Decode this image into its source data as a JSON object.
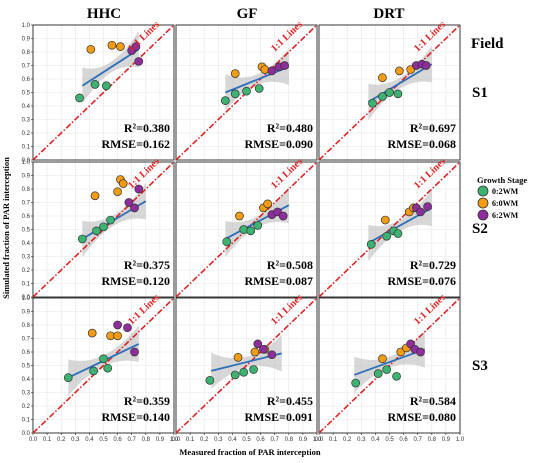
{
  "columns": [
    "HHC",
    "GF",
    "DRT"
  ],
  "rows": [
    "S1",
    "S2",
    "S3"
  ],
  "field_label": "Field",
  "xlabel": "Measured fraction of PAR interception",
  "ylabel": "Simulated fraction of PAR interception",
  "identity_label": "1:1 Lines",
  "tick_labels": [
    "0.0",
    "0.1",
    "0.2",
    "0.3",
    "0.4",
    "0.5",
    "0.6",
    "0.7",
    "0.8",
    "0.9",
    "1.0"
  ],
  "legend": {
    "title": "Growth Stage",
    "items": [
      {
        "label": "0:2WM",
        "color": "#3cb371"
      },
      {
        "label": "6:0WM",
        "color": "#f39c12"
      },
      {
        "label": "6:2WM",
        "color": "#8e2d9c"
      }
    ]
  },
  "colors": {
    "identity": "#dd2222",
    "fit": "#2c6fbb",
    "band": "#bdbdbd",
    "grid": "#e6e6e6"
  },
  "chart_data": [
    {
      "type": "scatter",
      "title": "HHC",
      "row": "S1",
      "r2": "R²=0.380",
      "rmse": "RMSE=0.162",
      "fit": [
        [
          0.35,
          0.55
        ],
        [
          0.75,
          0.82
        ]
      ],
      "xlim": [
        0,
        1
      ],
      "ylim": [
        0,
        1
      ],
      "series": [
        {
          "name": "0:2WM",
          "points": [
            [
              0.33,
              0.46
            ],
            [
              0.44,
              0.56
            ],
            [
              0.52,
              0.55
            ]
          ]
        },
        {
          "name": "6:0WM",
          "points": [
            [
              0.41,
              0.82
            ],
            [
              0.56,
              0.85
            ],
            [
              0.62,
              0.84
            ]
          ]
        },
        {
          "name": "6:2WM",
          "points": [
            [
              0.7,
              0.81
            ],
            [
              0.73,
              0.84
            ],
            [
              0.75,
              0.73
            ]
          ]
        }
      ]
    },
    {
      "type": "scatter",
      "title": "GF",
      "row": "S1",
      "r2": "R²=0.480",
      "rmse": "RMSE=0.090",
      "fit": [
        [
          0.35,
          0.5
        ],
        [
          0.8,
          0.69
        ]
      ],
      "xlim": [
        0,
        1
      ],
      "ylim": [
        0,
        1
      ],
      "series": [
        {
          "name": "0:2WM",
          "points": [
            [
              0.35,
              0.44
            ],
            [
              0.42,
              0.49
            ],
            [
              0.5,
              0.51
            ],
            [
              0.59,
              0.53
            ]
          ]
        },
        {
          "name": "6:0WM",
          "points": [
            [
              0.42,
              0.64
            ],
            [
              0.61,
              0.69
            ],
            [
              0.63,
              0.67
            ]
          ]
        },
        {
          "name": "6:2WM",
          "points": [
            [
              0.68,
              0.66
            ],
            [
              0.73,
              0.69
            ],
            [
              0.77,
              0.7
            ]
          ]
        }
      ]
    },
    {
      "type": "scatter",
      "title": "DRT",
      "row": "S1",
      "r2": "R²=0.697",
      "rmse": "RMSE=0.068",
      "fit": [
        [
          0.35,
          0.43
        ],
        [
          0.8,
          0.71
        ]
      ],
      "xlim": [
        0,
        1
      ],
      "ylim": [
        0,
        1
      ],
      "series": [
        {
          "name": "0:2WM",
          "points": [
            [
              0.38,
              0.42
            ],
            [
              0.45,
              0.47
            ],
            [
              0.5,
              0.5
            ],
            [
              0.56,
              0.49
            ]
          ]
        },
        {
          "name": "6:0WM",
          "points": [
            [
              0.45,
              0.61
            ],
            [
              0.57,
              0.66
            ],
            [
              0.65,
              0.67
            ]
          ]
        },
        {
          "name": "6:2WM",
          "points": [
            [
              0.69,
              0.7
            ],
            [
              0.73,
              0.71
            ],
            [
              0.76,
              0.7
            ]
          ]
        }
      ]
    },
    {
      "type": "scatter",
      "title": "HHC",
      "row": "S2",
      "r2": "R²=0.375",
      "rmse": "RMSE=0.120",
      "fit": [
        [
          0.35,
          0.43
        ],
        [
          0.8,
          0.71
        ]
      ],
      "xlim": [
        0,
        1
      ],
      "ylim": [
        0,
        1
      ],
      "series": [
        {
          "name": "0:2WM",
          "points": [
            [
              0.35,
              0.43
            ],
            [
              0.45,
              0.49
            ],
            [
              0.5,
              0.52
            ],
            [
              0.55,
              0.57
            ]
          ]
        },
        {
          "name": "6:0WM",
          "points": [
            [
              0.44,
              0.75
            ],
            [
              0.6,
              0.78
            ],
            [
              0.62,
              0.87
            ],
            [
              0.64,
              0.84
            ]
          ]
        },
        {
          "name": "6:2WM",
          "points": [
            [
              0.68,
              0.7
            ],
            [
              0.72,
              0.66
            ],
            [
              0.75,
              0.8
            ]
          ]
        }
      ]
    },
    {
      "type": "scatter",
      "title": "GF",
      "row": "S2",
      "r2": "R²=0.508",
      "rmse": "RMSE=0.087",
      "fit": [
        [
          0.35,
          0.43
        ],
        [
          0.8,
          0.68
        ]
      ],
      "xlim": [
        0,
        1
      ],
      "ylim": [
        0,
        1
      ],
      "series": [
        {
          "name": "0:2WM",
          "points": [
            [
              0.36,
              0.41
            ],
            [
              0.48,
              0.5
            ],
            [
              0.53,
              0.49
            ],
            [
              0.58,
              0.53
            ]
          ]
        },
        {
          "name": "6:0WM",
          "points": [
            [
              0.45,
              0.6
            ],
            [
              0.62,
              0.66
            ],
            [
              0.65,
              0.69
            ]
          ]
        },
        {
          "name": "6:2WM",
          "points": [
            [
              0.68,
              0.61
            ],
            [
              0.72,
              0.63
            ],
            [
              0.76,
              0.6
            ]
          ]
        }
      ]
    },
    {
      "type": "scatter",
      "title": "DRT",
      "row": "S2",
      "r2": "R²=0.729",
      "rmse": "RMSE=0.076",
      "fit": [
        [
          0.35,
          0.4
        ],
        [
          0.8,
          0.66
        ]
      ],
      "xlim": [
        0,
        1
      ],
      "ylim": [
        0,
        1
      ],
      "series": [
        {
          "name": "0:2WM",
          "points": [
            [
              0.37,
              0.39
            ],
            [
              0.48,
              0.45
            ],
            [
              0.53,
              0.49
            ],
            [
              0.56,
              0.47
            ]
          ]
        },
        {
          "name": "6:0WM",
          "points": [
            [
              0.47,
              0.57
            ],
            [
              0.64,
              0.63
            ],
            [
              0.67,
              0.66
            ]
          ]
        },
        {
          "name": "6:2WM",
          "points": [
            [
              0.69,
              0.66
            ],
            [
              0.72,
              0.63
            ],
            [
              0.77,
              0.67
            ]
          ]
        }
      ]
    },
    {
      "type": "scatter",
      "title": "HHC",
      "row": "S3",
      "r2": "R²=0.359",
      "rmse": "RMSE=0.140",
      "fit": [
        [
          0.25,
          0.41
        ],
        [
          0.75,
          0.66
        ]
      ],
      "xlim": [
        0,
        1
      ],
      "ylim": [
        0,
        1
      ],
      "series": [
        {
          "name": "0:2WM",
          "points": [
            [
              0.25,
              0.41
            ],
            [
              0.43,
              0.46
            ],
            [
              0.5,
              0.55
            ],
            [
              0.53,
              0.48
            ]
          ]
        },
        {
          "name": "6:0WM",
          "points": [
            [
              0.42,
              0.74
            ],
            [
              0.55,
              0.72
            ],
            [
              0.6,
              0.72
            ]
          ]
        },
        {
          "name": "6:2WM",
          "points": [
            [
              0.6,
              0.8
            ],
            [
              0.67,
              0.78
            ],
            [
              0.72,
              0.6
            ]
          ]
        }
      ]
    },
    {
      "type": "scatter",
      "title": "GF",
      "row": "S3",
      "r2": "R²=0.455",
      "rmse": "RMSE=0.091",
      "fit": [
        [
          0.25,
          0.46
        ],
        [
          0.75,
          0.59
        ]
      ],
      "xlim": [
        0,
        1
      ],
      "ylim": [
        0,
        1
      ],
      "series": [
        {
          "name": "0:2WM",
          "points": [
            [
              0.24,
              0.39
            ],
            [
              0.42,
              0.43
            ],
            [
              0.48,
              0.45
            ],
            [
              0.55,
              0.47
            ]
          ]
        },
        {
          "name": "6:0WM",
          "points": [
            [
              0.44,
              0.56
            ],
            [
              0.56,
              0.6
            ],
            [
              0.63,
              0.62
            ]
          ]
        },
        {
          "name": "6:2WM",
          "points": [
            [
              0.58,
              0.66
            ],
            [
              0.62,
              0.62
            ],
            [
              0.68,
              0.58
            ]
          ]
        }
      ]
    },
    {
      "type": "scatter",
      "title": "DRT",
      "row": "S3",
      "r2": "R²=0.584",
      "rmse": "RMSE=0.080",
      "fit": [
        [
          0.25,
          0.43
        ],
        [
          0.75,
          0.62
        ]
      ],
      "xlim": [
        0,
        1
      ],
      "ylim": [
        0,
        1
      ],
      "series": [
        {
          "name": "0:2WM",
          "points": [
            [
              0.26,
              0.37
            ],
            [
              0.42,
              0.44
            ],
            [
              0.48,
              0.47
            ],
            [
              0.55,
              0.42
            ]
          ]
        },
        {
          "name": "6:0WM",
          "points": [
            [
              0.45,
              0.55
            ],
            [
              0.58,
              0.6
            ],
            [
              0.62,
              0.63
            ]
          ]
        },
        {
          "name": "6:2WM",
          "points": [
            [
              0.65,
              0.66
            ],
            [
              0.68,
              0.62
            ],
            [
              0.72,
              0.6
            ]
          ]
        }
      ]
    }
  ]
}
